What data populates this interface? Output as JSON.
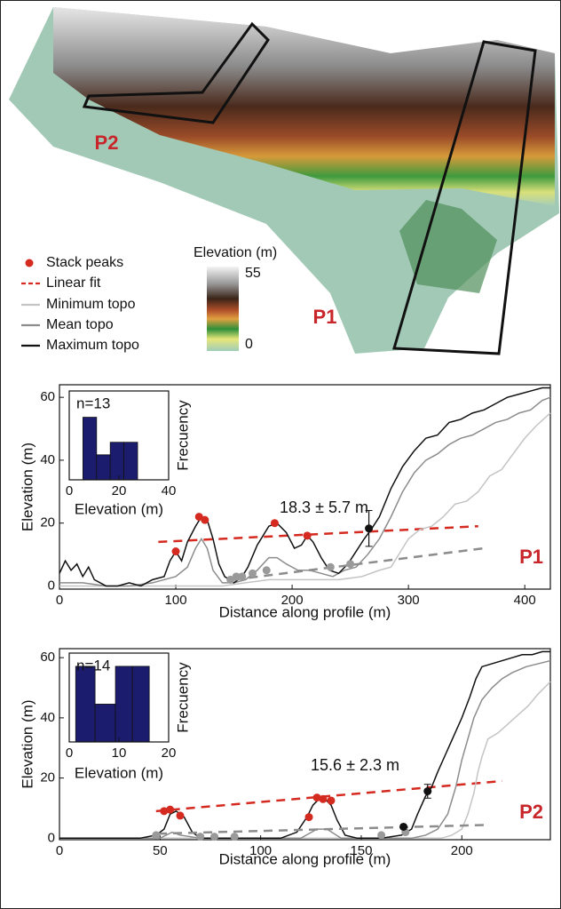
{
  "map": {
    "profile_labels": [
      "P2",
      "P1"
    ],
    "colorbar": {
      "title": "Elevation (m)",
      "lim": [
        0,
        55
      ],
      "ticks": [
        0,
        55
      ]
    }
  },
  "chart_data": [
    {
      "type": "line",
      "label": "P1",
      "annotation": "18.3 ± 5.7 m",
      "x_label": "Distance along profile (m)",
      "y_label": "Elevation (m)",
      "xlim": [
        0,
        422
      ],
      "ylim": [
        -1,
        64
      ],
      "xticks": [
        0,
        100,
        200,
        300,
        400
      ],
      "yticks": [
        0,
        20,
        40,
        60
      ],
      "series": [
        {
          "name": "Stack peaks",
          "color": "#d42a20",
          "mode": "markers",
          "x": [
            100,
            120,
            125,
            185,
            213
          ],
          "values": [
            11,
            22,
            21,
            20,
            16
          ]
        },
        {
          "name": "Linear fit",
          "color": "#d42a20",
          "mode": "dash",
          "x": [
            85,
            360
          ],
          "values": [
            14,
            19
          ]
        },
        {
          "name": "Minimum topo",
          "color": "#c4c4c4",
          "mode": "line",
          "x": [
            0,
            50,
            100,
            140,
            160,
            180,
            200,
            220,
            240,
            260,
            275,
            285,
            295,
            300,
            310,
            320,
            330,
            340,
            350,
            360,
            370,
            380,
            390,
            400,
            410,
            422
          ],
          "values": [
            0,
            0,
            0,
            0,
            1,
            2,
            2,
            2,
            2,
            3,
            5,
            6,
            12,
            15,
            18,
            19,
            22,
            26,
            27,
            30,
            35,
            37,
            42,
            47,
            51,
            55
          ]
        },
        {
          "name": "Mean topo",
          "color": "#8c8c8c",
          "mode": "line",
          "x": [
            0,
            20,
            40,
            60,
            80,
            100,
            110,
            117,
            122,
            127,
            132,
            140,
            150,
            160,
            170,
            180,
            187,
            195,
            205,
            215,
            225,
            235,
            245,
            255,
            265,
            275,
            285,
            295,
            305,
            315,
            325,
            335,
            345,
            355,
            365,
            375,
            385,
            395,
            405,
            415,
            422
          ],
          "values": [
            1,
            1,
            0,
            0,
            1,
            3,
            6,
            12,
            15,
            12,
            5,
            1,
            1,
            2,
            5,
            9,
            9,
            7,
            5,
            5,
            4,
            3,
            5,
            6,
            10,
            15,
            22,
            30,
            36,
            40,
            42,
            45,
            47,
            48,
            50,
            52,
            53,
            55,
            56,
            59,
            60
          ]
        },
        {
          "name": "Maximum topo",
          "color": "#111111",
          "mode": "line",
          "x": [
            0,
            5,
            10,
            15,
            20,
            25,
            30,
            40,
            50,
            60,
            70,
            80,
            90,
            95,
            100,
            105,
            110,
            117,
            122,
            127,
            132,
            137,
            142,
            150,
            157,
            162,
            170,
            180,
            187,
            195,
            202,
            208,
            213,
            218,
            225,
            232,
            240,
            248,
            255,
            262,
            268,
            275,
            285,
            295,
            305,
            315,
            325,
            335,
            345,
            355,
            365,
            375,
            385,
            395,
            405,
            415,
            422
          ],
          "values": [
            4,
            8,
            5,
            7,
            3,
            6,
            2,
            0,
            0,
            1,
            0,
            2,
            3,
            8,
            11,
            8,
            14,
            19,
            22,
            21,
            15,
            7,
            3,
            1,
            3,
            6,
            13,
            19,
            20,
            17,
            12,
            13,
            16,
            14,
            9,
            5,
            4,
            7,
            11,
            15,
            18,
            22,
            31,
            38,
            43,
            47,
            48,
            52,
            53,
            55,
            56,
            58,
            60,
            61,
            62,
            63,
            63
          ]
        },
        {
          "color": "#8c8c8c",
          "mode": "dash",
          "x": [
            150,
            365
          ],
          "values": [
            2,
            12
          ]
        },
        {
          "color": "#9a9a9a",
          "mode": "markers",
          "x": [
            147,
            152,
            157,
            166,
            178,
            233,
            250
          ],
          "values": [
            2,
            3,
            3,
            4,
            5,
            6,
            7
          ]
        },
        {
          "color": "#111111",
          "mode": "markers",
          "x": [
            266
          ],
          "values": [
            18.3
          ],
          "errors": [
            5.7
          ]
        }
      ]
    },
    {
      "type": "histogram",
      "annotation": "n=13",
      "x_label": "Elevation (m)",
      "y_label": "Frecuency",
      "xlim": [
        0,
        40
      ],
      "xticks": [
        0,
        20,
        40
      ],
      "ylim": [
        0,
        7.1
      ],
      "color": "#1c1c6e",
      "bins": [
        5.5,
        11,
        16.5,
        22,
        27.5
      ],
      "values": [
        5,
        2,
        3,
        3
      ]
    },
    {
      "type": "line",
      "label": "P2",
      "annotation": "15.6 ± 2.3 m",
      "x_label": "Distance along profile (m)",
      "y_label": "Elevation (m)",
      "xlim": [
        0,
        244
      ],
      "ylim": [
        -0.5,
        63
      ],
      "xticks": [
        0,
        50,
        100,
        150,
        200
      ],
      "yticks": [
        0,
        20,
        40,
        60
      ],
      "series": [
        {
          "color": "#d42a20",
          "mode": "markers",
          "x": [
            52,
            55,
            60,
            124,
            128,
            131,
            135
          ],
          "values": [
            9,
            9.5,
            7.5,
            7,
            13.5,
            13,
            12.5
          ]
        },
        {
          "color": "#d42a20",
          "mode": "dash",
          "x": [
            48,
            220
          ],
          "values": [
            9,
            19
          ]
        },
        {
          "color": "#c4c4c4",
          "mode": "line",
          "x": [
            0,
            180,
            190,
            195,
            200,
            203,
            206,
            208,
            210,
            213,
            218,
            223,
            228,
            233,
            238,
            244
          ],
          "values": [
            0,
            0,
            0,
            1,
            3,
            8,
            15,
            22,
            27,
            33,
            35,
            38,
            41,
            44,
            48,
            52
          ]
        },
        {
          "color": "#8c8c8c",
          "mode": "line",
          "x": [
            0,
            50,
            56,
            60,
            70,
            120,
            128,
            133,
            140,
            175,
            182,
            188,
            193,
            197,
            200,
            203,
            206,
            210,
            215,
            220,
            225,
            232,
            238,
            244
          ],
          "values": [
            0,
            0,
            2,
            1,
            0,
            0,
            3,
            3,
            0,
            0,
            1,
            3,
            8,
            17,
            26,
            33,
            40,
            46,
            50,
            53,
            55,
            57,
            58,
            59
          ]
        },
        {
          "color": "#111111",
          "mode": "line",
          "x": [
            0,
            40,
            48,
            52,
            55,
            58,
            62,
            66,
            70,
            90,
            110,
            118,
            123,
            126,
            129,
            132,
            135,
            138,
            142,
            148,
            160,
            170,
            175,
            178,
            182,
            185,
            188,
            192,
            196,
            200,
            204,
            207,
            210,
            215,
            220,
            225,
            230,
            235,
            240,
            244
          ],
          "values": [
            0,
            0,
            1,
            3,
            8,
            9,
            7,
            2,
            0,
            0,
            0,
            2,
            7,
            11,
            13,
            13,
            11,
            6,
            1,
            0,
            0,
            1,
            3,
            8,
            14,
            17,
            22,
            28,
            34,
            40,
            47,
            53,
            57,
            58,
            59,
            60,
            61,
            61,
            62,
            62
          ]
        },
        {
          "color": "#8c8c8c",
          "mode": "dash",
          "x": [
            49,
            212
          ],
          "values": [
            1.5,
            4.4
          ]
        },
        {
          "color": "#9a9a9a",
          "mode": "markers",
          "x": [
            48,
            70,
            77,
            87,
            160,
            172
          ],
          "values": [
            1,
            0.5,
            0.5,
            0.5,
            1,
            2
          ]
        },
        {
          "color": "#111111",
          "mode": "markers",
          "x": [
            171
          ],
          "values": [
            3.8
          ]
        },
        {
          "color": "#111111",
          "mode": "markers",
          "x": [
            183
          ],
          "values": [
            15.6
          ],
          "errors": [
            2.3
          ]
        }
      ]
    },
    {
      "type": "histogram",
      "annotation": "n=14",
      "x_label": "Elevation (m)",
      "y_label": "Frecuency",
      "xlim": [
        0,
        20
      ],
      "xticks": [
        0,
        10,
        20
      ],
      "ylim": [
        0,
        4.7
      ],
      "color": "#1c1c6e",
      "bins": [
        1.3,
        5.2,
        9.3,
        12.7,
        16.1
      ],
      "values": [
        4,
        2,
        4,
        4
      ]
    }
  ]
}
